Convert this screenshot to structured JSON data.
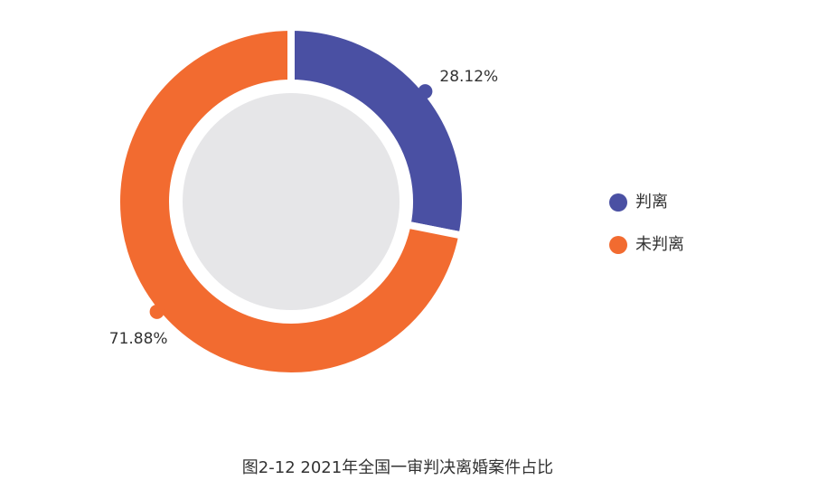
{
  "chart_data": {
    "type": "donut",
    "title": "图2-12  2021年全国一审判决离婚案件占比",
    "categories": [
      "判离",
      "未判离"
    ],
    "values": [
      28.12,
      71.88
    ],
    "value_labels": [
      "28.12%",
      "71.88%"
    ],
    "colors": [
      "#4a50a3",
      "#f26b30"
    ],
    "legend": "right"
  }
}
